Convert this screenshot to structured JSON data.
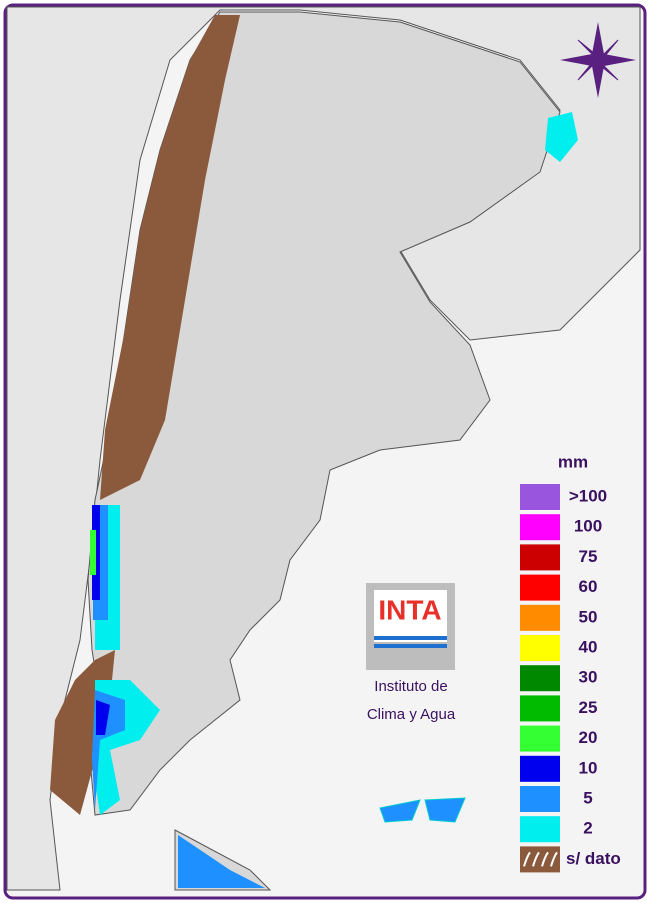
{
  "legend": {
    "title": "mm",
    "items": [
      {
        "label": ">100",
        "color": "#9955dd"
      },
      {
        "label": "100",
        "color": "#ff00ff"
      },
      {
        "label": "75",
        "color": "#cc0000"
      },
      {
        "label": "60",
        "color": "#ff0000"
      },
      {
        "label": "50",
        "color": "#ff8c00"
      },
      {
        "label": "40",
        "color": "#ffff00"
      },
      {
        "label": "30",
        "color": "#008800"
      },
      {
        "label": "25",
        "color": "#00bb00"
      },
      {
        "label": "20",
        "color": "#33ff33"
      },
      {
        "label": "10",
        "color": "#0000ee"
      },
      {
        "label": "5",
        "color": "#1e90ff"
      },
      {
        "label": "2",
        "color": "#00eeee"
      },
      {
        "label": "s/ dato",
        "color": "#8b5a3c"
      }
    ]
  },
  "logo": {
    "name": "INTA",
    "line1": "Instituto de",
    "line2": "Clima y Agua"
  }
}
